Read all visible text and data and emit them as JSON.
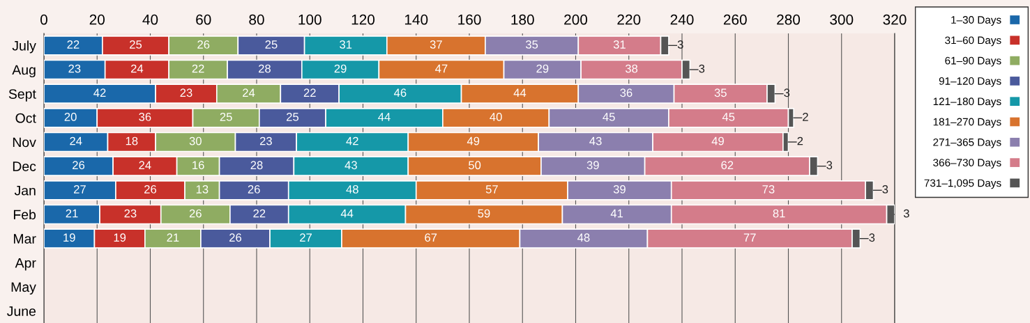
{
  "chart_data": {
    "type": "bar",
    "orientation": "horizontal",
    "stacked": true,
    "data_labels": true,
    "grid": "x",
    "legend": "right",
    "categories": [
      "July",
      "Aug",
      "Sept",
      "Oct",
      "Nov",
      "Dec",
      "Jan",
      "Feb",
      "Mar",
      "Apr",
      "May",
      "June"
    ],
    "xlim": [
      0,
      320
    ],
    "xticks": [
      0,
      20,
      40,
      60,
      80,
      100,
      120,
      140,
      160,
      180,
      200,
      220,
      240,
      260,
      280,
      300,
      320
    ],
    "series": [
      {
        "name": "1–30 Days",
        "color": "#1a68aa",
        "values": [
          22,
          23,
          42,
          20,
          24,
          26,
          27,
          21,
          19,
          null,
          null,
          null
        ]
      },
      {
        "name": "31–60 Days",
        "color": "#c8312a",
        "values": [
          25,
          24,
          23,
          36,
          18,
          24,
          26,
          23,
          19,
          null,
          null,
          null
        ]
      },
      {
        "name": "61–90 Days",
        "color": "#8fac62",
        "values": [
          26,
          22,
          24,
          25,
          30,
          16,
          13,
          26,
          21,
          null,
          null,
          null
        ]
      },
      {
        "name": "91–120 Days",
        "color": "#4a5a9c",
        "values": [
          25,
          28,
          22,
          25,
          23,
          28,
          26,
          22,
          26,
          null,
          null,
          null
        ]
      },
      {
        "name": "121–180 Days",
        "color": "#1598a8",
        "values": [
          31,
          29,
          46,
          44,
          42,
          43,
          48,
          44,
          27,
          null,
          null,
          null
        ]
      },
      {
        "name": "181–270 Days",
        "color": "#d8732e",
        "values": [
          37,
          47,
          44,
          40,
          49,
          50,
          57,
          59,
          67,
          null,
          null,
          null
        ]
      },
      {
        "name": "271–365 Days",
        "color": "#8b7fae",
        "values": [
          35,
          29,
          36,
          45,
          43,
          39,
          39,
          41,
          48,
          null,
          null,
          null
        ]
      },
      {
        "name": "366–730 Days",
        "color": "#d47c8a",
        "values": [
          31,
          38,
          35,
          45,
          49,
          62,
          73,
          81,
          77,
          null,
          null,
          null
        ]
      },
      {
        "name": "731–1,095 Days",
        "color": "#555555",
        "values": [
          3,
          3,
          3,
          2,
          2,
          3,
          3,
          3,
          3,
          null,
          null,
          null
        ]
      }
    ]
  }
}
